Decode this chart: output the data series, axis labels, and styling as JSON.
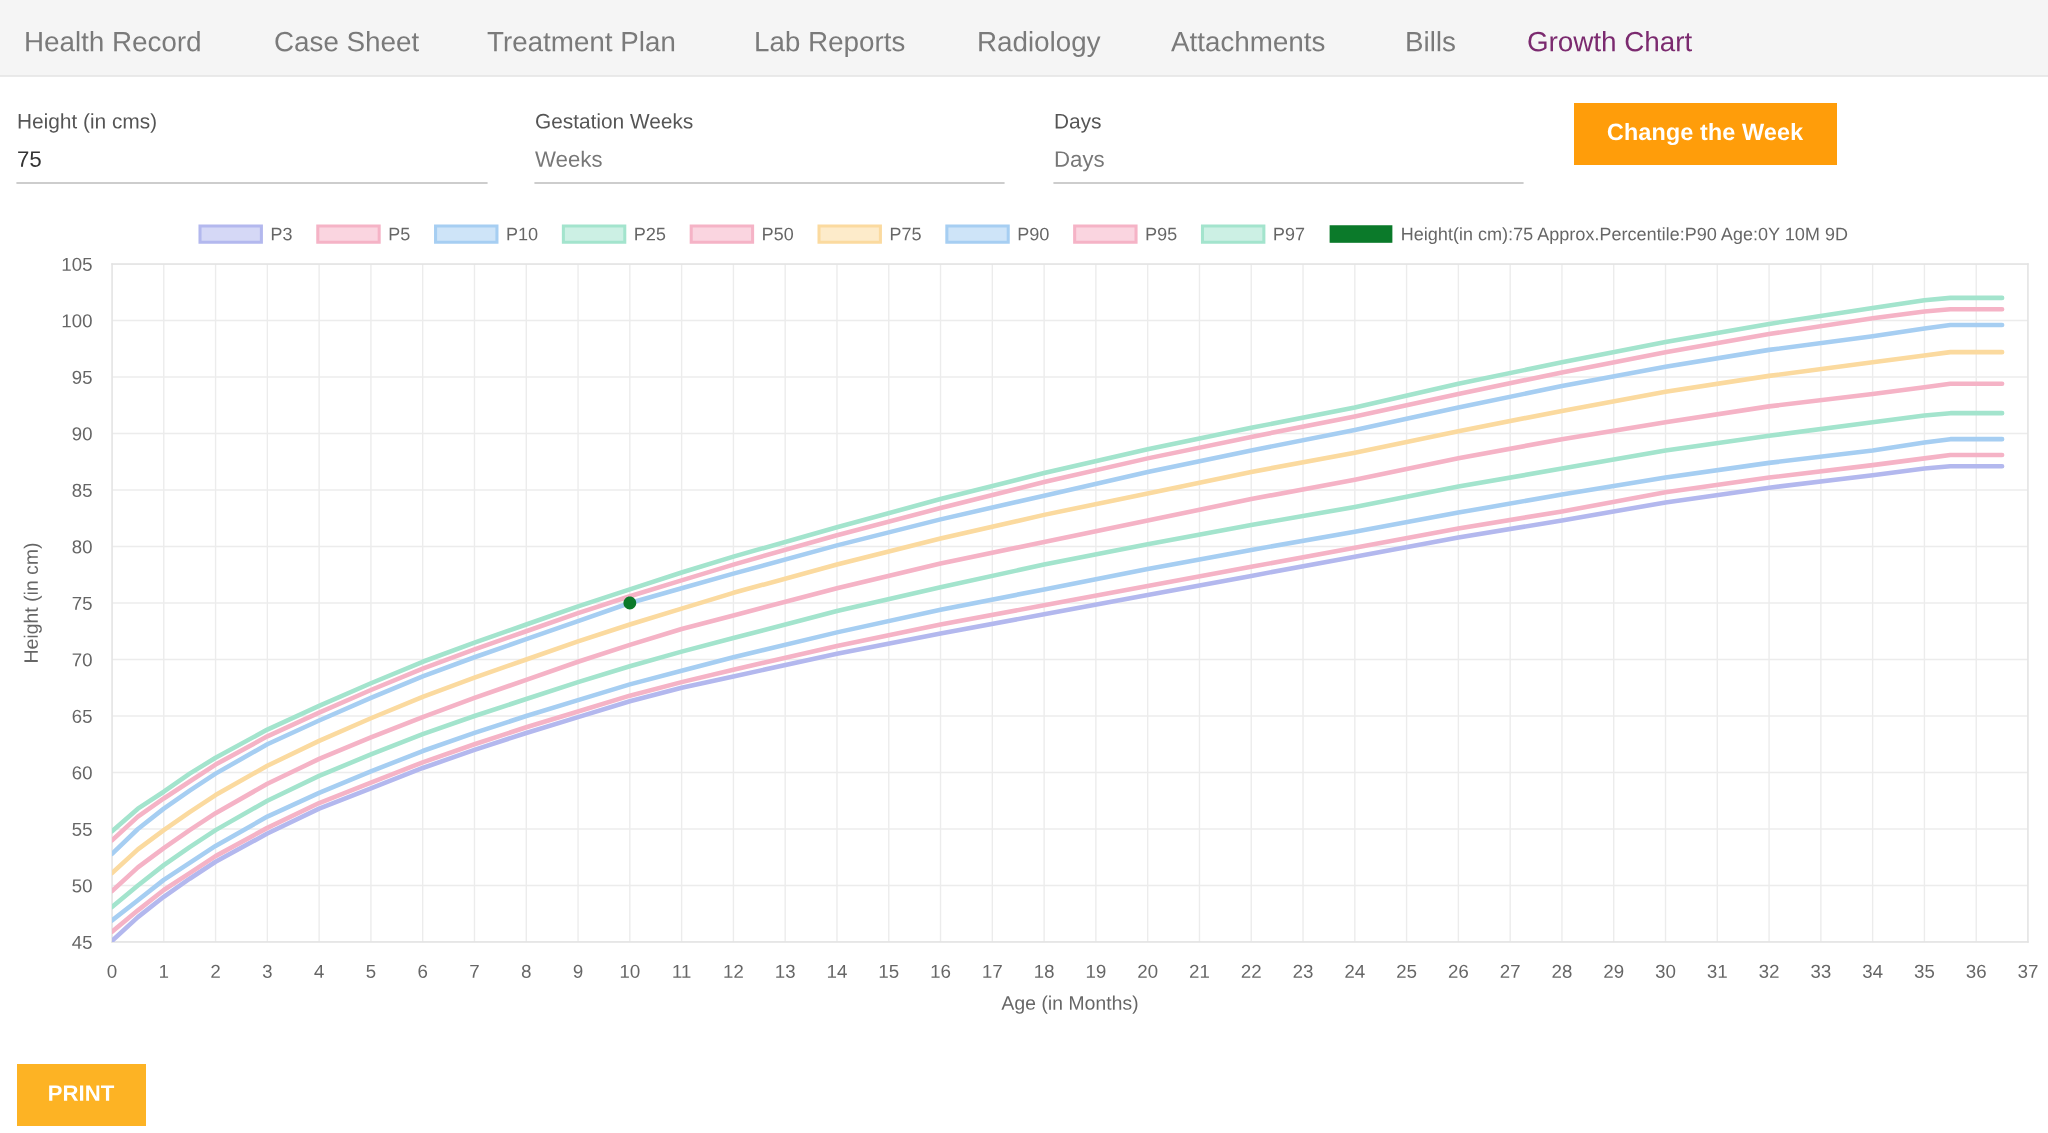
{
  "chart_data": {
    "type": "line",
    "xlabel": "Age (in Months)",
    "ylabel": "Height (in cm)",
    "x": [
      0,
      0.5,
      1,
      1.5,
      2,
      3,
      4,
      5,
      6,
      7,
      8,
      9,
      10,
      11,
      12,
      14,
      16,
      18,
      20,
      22,
      24,
      26,
      28,
      30,
      32,
      34,
      35,
      35.5,
      36,
      36.5
    ],
    "series": [
      {
        "name": "P3",
        "color": "#b3b8ee",
        "values": [
          45.1,
          47.2,
          49.0,
          50.6,
          52.1,
          54.6,
          56.8,
          58.6,
          60.4,
          62.0,
          63.5,
          64.9,
          66.3,
          67.5,
          68.5,
          70.5,
          72.3,
          74.0,
          75.7,
          77.4,
          79.1,
          80.8,
          82.3,
          83.9,
          85.2,
          86.3,
          86.9,
          87.1,
          87.1,
          87.1
        ]
      },
      {
        "name": "P5",
        "color": "#f5b3c6",
        "values": [
          45.9,
          47.8,
          49.6,
          51.1,
          52.6,
          55.1,
          57.3,
          59.1,
          60.9,
          62.5,
          64.0,
          65.4,
          66.8,
          68.0,
          69.1,
          71.2,
          73.1,
          74.8,
          76.5,
          78.2,
          79.9,
          81.6,
          83.1,
          84.8,
          86.1,
          87.2,
          87.8,
          88.1,
          88.1,
          88.1
        ]
      },
      {
        "name": "P10",
        "color": "#a6cef2",
        "values": [
          46.9,
          48.7,
          50.5,
          52.0,
          53.5,
          56.1,
          58.2,
          60.1,
          61.9,
          63.5,
          65.0,
          66.4,
          67.8,
          69.0,
          70.2,
          72.4,
          74.4,
          76.2,
          78.0,
          79.7,
          81.3,
          83.0,
          84.6,
          86.1,
          87.4,
          88.5,
          89.2,
          89.5,
          89.5,
          89.5
        ]
      },
      {
        "name": "P25",
        "color": "#a3e4cd",
        "values": [
          48.1,
          50.0,
          51.8,
          53.4,
          54.9,
          57.5,
          59.7,
          61.6,
          63.4,
          65.0,
          66.5,
          68.0,
          69.4,
          70.7,
          71.9,
          74.3,
          76.4,
          78.4,
          80.2,
          81.9,
          83.5,
          85.3,
          86.9,
          88.5,
          89.8,
          91.0,
          91.6,
          91.8,
          91.8,
          91.8
        ]
      },
      {
        "name": "P50",
        "color": "#f5b3c6",
        "values": [
          49.5,
          51.6,
          53.3,
          54.9,
          56.4,
          59.0,
          61.2,
          63.1,
          64.9,
          66.6,
          68.2,
          69.8,
          71.3,
          72.7,
          73.9,
          76.3,
          78.5,
          80.4,
          82.3,
          84.2,
          85.9,
          87.8,
          89.5,
          91.0,
          92.4,
          93.5,
          94.1,
          94.4,
          94.4,
          94.4
        ]
      },
      {
        "name": "P75",
        "color": "#fbda9f",
        "values": [
          51.1,
          53.2,
          54.9,
          56.5,
          58.0,
          60.6,
          62.8,
          64.8,
          66.7,
          68.4,
          70.0,
          71.6,
          73.1,
          74.5,
          75.9,
          78.4,
          80.7,
          82.8,
          84.7,
          86.6,
          88.3,
          90.2,
          92.0,
          93.7,
          95.1,
          96.3,
          96.9,
          97.2,
          97.2,
          97.2
        ]
      },
      {
        "name": "P90",
        "color": "#a6cef2",
        "values": [
          52.8,
          55.0,
          56.8,
          58.4,
          59.9,
          62.5,
          64.6,
          66.6,
          68.5,
          70.2,
          71.8,
          73.4,
          75.0,
          76.3,
          77.6,
          80.1,
          82.4,
          84.5,
          86.6,
          88.5,
          90.3,
          92.3,
          94.2,
          95.9,
          97.4,
          98.6,
          99.3,
          99.6,
          99.6,
          99.6
        ]
      },
      {
        "name": "P95",
        "color": "#f5b3c6",
        "values": [
          54.0,
          56.1,
          57.7,
          59.2,
          60.7,
          63.2,
          65.3,
          67.3,
          69.2,
          70.9,
          72.5,
          74.1,
          75.6,
          77.0,
          78.4,
          81.0,
          83.4,
          85.7,
          87.8,
          89.7,
          91.5,
          93.5,
          95.4,
          97.2,
          98.8,
          100.2,
          100.8,
          101.0,
          101.0,
          101.0
        ]
      },
      {
        "name": "P97",
        "color": "#a3e4cd",
        "values": [
          54.8,
          56.8,
          58.3,
          59.9,
          61.3,
          63.8,
          65.9,
          67.9,
          69.8,
          71.5,
          73.1,
          74.7,
          76.2,
          77.7,
          79.1,
          81.7,
          84.2,
          86.5,
          88.6,
          90.5,
          92.3,
          94.4,
          96.3,
          98.1,
          99.7,
          101.1,
          101.8,
          102.0,
          102.0,
          102.0
        ]
      },
      {
        "name": "Height(in cm):75 Approx.Percentile:P90 Age:0Y 10M 9D",
        "type": "scatter",
        "color": "#0b7a2a",
        "x": [
          10
        ],
        "values": [
          75
        ]
      }
    ],
    "xlim": [
      0,
      37
    ],
    "xticks": [
      0,
      1,
      2,
      3,
      4,
      5,
      6,
      7,
      8,
      9,
      10,
      11,
      12,
      13,
      14,
      15,
      16,
      17,
      18,
      19,
      20,
      21,
      22,
      23,
      24,
      25,
      26,
      27,
      28,
      29,
      30,
      31,
      32,
      33,
      34,
      35,
      36,
      37
    ],
    "ylim": [
      45,
      105
    ],
    "yticks": [
      45,
      50,
      55,
      60,
      65,
      70,
      75,
      80,
      85,
      90,
      95,
      100,
      105
    ],
    "grid": true,
    "legend": "top",
    "annotations": [
      "Health Record",
      "Case Sheet",
      "Treatment Plan",
      "Lab Reports",
      "Radiology",
      "Attachments",
      "Bills",
      "Growth Chart",
      "Height (in cms)",
      "75",
      "Gestation Weeks",
      "Weeks",
      "Days",
      "Days",
      "Change the Week",
      "PRINT"
    ]
  }
}
